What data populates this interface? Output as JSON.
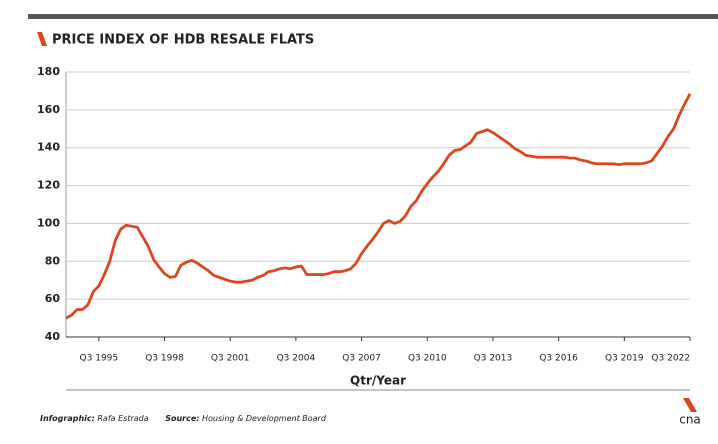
{
  "chart_data": {
    "type": "line",
    "title": "PRICE INDEX OF HDB RESALE FLATS",
    "x_label": "Qtr/Year",
    "categories": [
      null,
      null,
      null,
      null,
      null,
      null,
      "Q3 1995",
      null,
      null,
      null,
      null,
      null,
      null,
      null,
      null,
      null,
      null,
      null,
      "Q3 1998",
      null,
      null,
      null,
      null,
      null,
      null,
      null,
      null,
      null,
      null,
      null,
      "Q3 2001",
      null,
      null,
      null,
      null,
      null,
      null,
      null,
      null,
      null,
      null,
      null,
      "Q3 2004",
      null,
      null,
      null,
      null,
      null,
      null,
      null,
      null,
      null,
      null,
      null,
      "Q3 2007",
      null,
      null,
      null,
      null,
      null,
      null,
      null,
      null,
      null,
      null,
      null,
      "Q3 2010",
      null,
      null,
      null,
      null,
      null,
      null,
      null,
      null,
      null,
      null,
      null,
      "Q3 2013",
      null,
      null,
      null,
      null,
      null,
      null,
      null,
      null,
      null,
      null,
      null,
      "Q3 2016",
      null,
      null,
      null,
      null,
      null,
      null,
      null,
      null,
      null,
      null,
      null,
      "Q3 2019",
      null,
      null,
      null,
      null,
      null,
      null,
      null,
      null,
      null,
      null,
      null,
      "Q3 2022"
    ],
    "values": [
      50,
      51.5,
      54.5,
      54.5,
      57,
      64,
      67,
      73,
      80,
      91,
      97,
      99,
      98.5,
      98,
      93,
      88,
      81,
      77,
      73.5,
      71.5,
      72,
      78,
      79.5,
      80.5,
      79,
      77,
      75,
      72.5,
      71.5,
      70.5,
      69.5,
      69,
      69,
      69.5,
      70,
      71.5,
      72.5,
      74.5,
      75,
      76,
      76.5,
      76,
      77,
      77.5,
      73,
      73,
      73,
      73,
      73.5,
      74.5,
      74.5,
      75,
      76,
      79,
      84,
      88,
      91.5,
      95.5,
      100,
      101.5,
      100,
      101,
      104,
      109,
      112,
      117,
      121,
      124.5,
      127.5,
      131.5,
      136,
      138.5,
      139,
      141,
      143,
      147.5,
      148.5,
      149.5,
      148,
      146,
      144,
      142,
      139.5,
      138,
      136,
      135.5,
      135,
      135,
      135,
      135,
      135,
      135,
      134.5,
      134.5,
      133.5,
      133,
      132,
      131.5,
      131.5,
      131.5,
      131.5,
      131,
      131.5,
      131.5,
      131.5,
      131.5,
      132,
      133,
      137,
      141,
      146,
      150,
      157,
      163,
      168.5
    ],
    "color": "#d9461f",
    "ylim": [
      40,
      180
    ],
    "yticks": [
      40,
      60,
      80,
      100,
      120,
      140,
      160,
      180
    ],
    "grid": true
  },
  "footer": {
    "credit_label": "Infographic:",
    "credit": "Rafa Estrada",
    "source_label": "Source:",
    "source": "Housing & Development Board"
  },
  "logo": "cna"
}
